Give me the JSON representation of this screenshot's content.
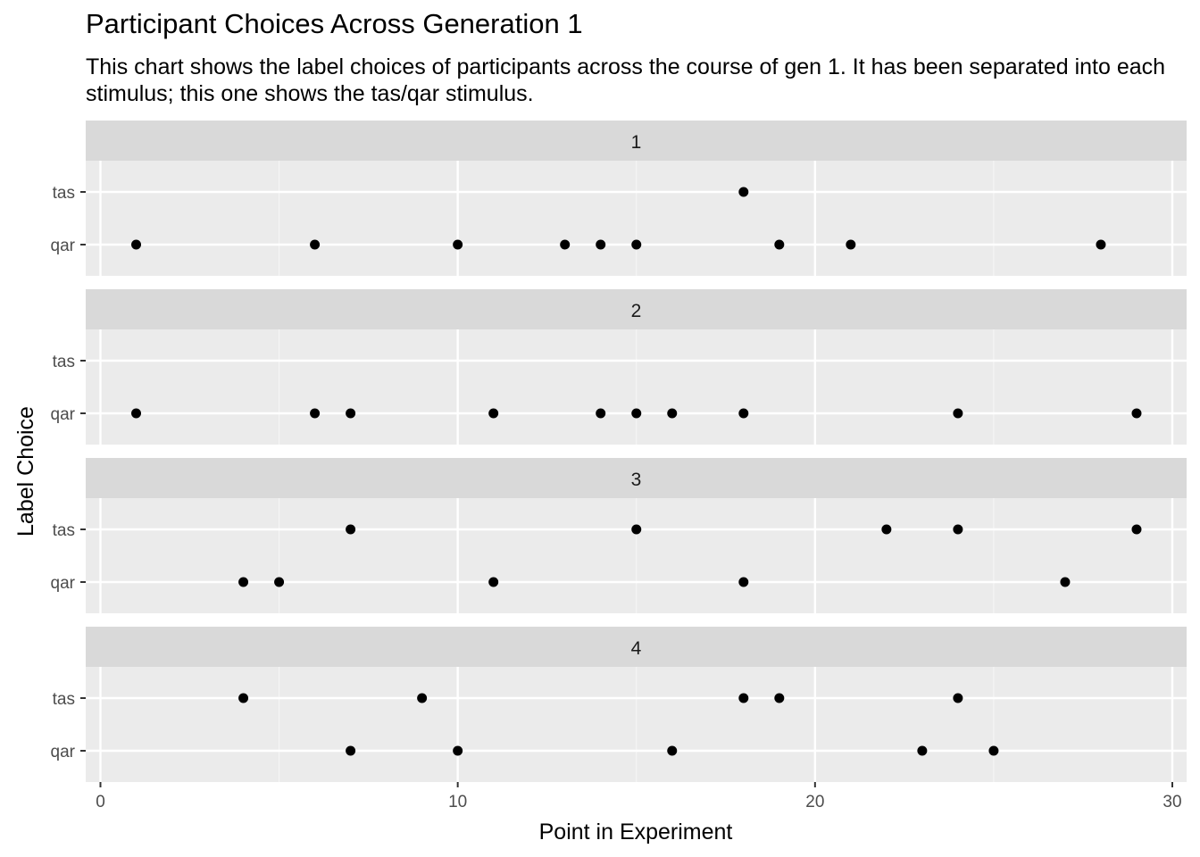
{
  "chart_data": {
    "type": "scatter",
    "title": "Participant Choices Across Generation 1",
    "subtitle": "This chart shows the label choices of participants across the course of gen 1. It has been separated into each stimulus; this one shows the tas/qar stimulus.",
    "xlabel": "Point in Experiment",
    "ylabel": "Label Choice",
    "xlim": [
      0,
      30
    ],
    "x_ticks": [
      0,
      10,
      20,
      30
    ],
    "y_categories": [
      "qar",
      "tas"
    ],
    "grid": true,
    "facets": [
      {
        "label": "1",
        "points": [
          {
            "x": 1,
            "y": "qar"
          },
          {
            "x": 6,
            "y": "qar"
          },
          {
            "x": 10,
            "y": "qar"
          },
          {
            "x": 13,
            "y": "qar"
          },
          {
            "x": 14,
            "y": "qar"
          },
          {
            "x": 15,
            "y": "qar"
          },
          {
            "x": 18,
            "y": "tas"
          },
          {
            "x": 19,
            "y": "qar"
          },
          {
            "x": 21,
            "y": "qar"
          },
          {
            "x": 28,
            "y": "qar"
          }
        ]
      },
      {
        "label": "2",
        "points": [
          {
            "x": 1,
            "y": "qar"
          },
          {
            "x": 6,
            "y": "qar"
          },
          {
            "x": 7,
            "y": "qar"
          },
          {
            "x": 11,
            "y": "qar"
          },
          {
            "x": 14,
            "y": "qar"
          },
          {
            "x": 15,
            "y": "qar"
          },
          {
            "x": 16,
            "y": "qar"
          },
          {
            "x": 18,
            "y": "qar"
          },
          {
            "x": 24,
            "y": "qar"
          },
          {
            "x": 29,
            "y": "qar"
          }
        ]
      },
      {
        "label": "3",
        "points": [
          {
            "x": 4,
            "y": "qar"
          },
          {
            "x": 5,
            "y": "qar"
          },
          {
            "x": 7,
            "y": "tas"
          },
          {
            "x": 11,
            "y": "qar"
          },
          {
            "x": 15,
            "y": "tas"
          },
          {
            "x": 18,
            "y": "qar"
          },
          {
            "x": 22,
            "y": "tas"
          },
          {
            "x": 24,
            "y": "tas"
          },
          {
            "x": 27,
            "y": "qar"
          },
          {
            "x": 29,
            "y": "tas"
          }
        ]
      },
      {
        "label": "4",
        "points": [
          {
            "x": 4,
            "y": "tas"
          },
          {
            "x": 7,
            "y": "qar"
          },
          {
            "x": 9,
            "y": "tas"
          },
          {
            "x": 10,
            "y": "qar"
          },
          {
            "x": 16,
            "y": "qar"
          },
          {
            "x": 18,
            "y": "tas"
          },
          {
            "x": 19,
            "y": "tas"
          },
          {
            "x": 23,
            "y": "qar"
          },
          {
            "x": 24,
            "y": "tas"
          },
          {
            "x": 25,
            "y": "qar"
          }
        ]
      }
    ]
  }
}
